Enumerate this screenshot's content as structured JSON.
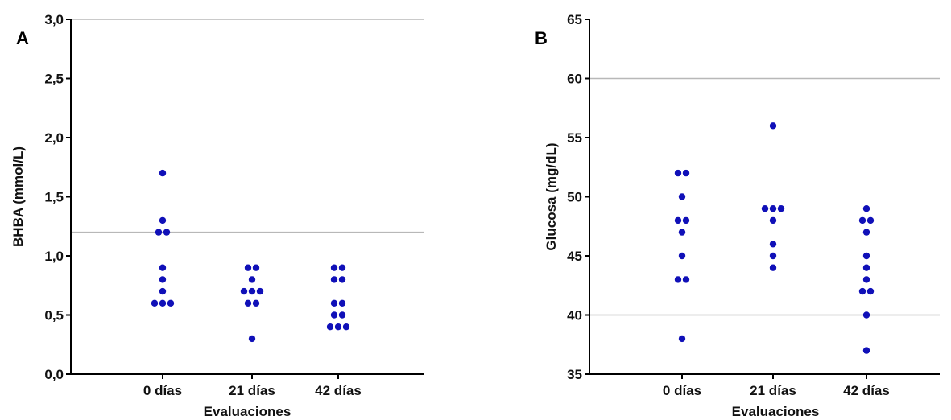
{
  "colors": {
    "point": "#1010b8",
    "axis": "#000000",
    "reference_line": "#b8b8b8"
  },
  "chart_data": [
    {
      "type": "scatter",
      "panel_label": "A",
      "categories": [
        "0 días",
        "21 días",
        "42 días"
      ],
      "xlabel": "Evaluaciones",
      "ylabel": "BHBA (mmol/L)",
      "ylim": [
        0,
        3
      ],
      "yticks": [
        "0,0",
        "0,5",
        "1,0",
        "1,5",
        "2,0",
        "2,5",
        "3,0"
      ],
      "ytick_values": [
        0,
        0.5,
        1,
        1.5,
        2,
        2.5,
        3
      ],
      "reference_lines": [
        1.2,
        3.0
      ],
      "points": [
        [
          0,
          1.7
        ],
        [
          0,
          1.3
        ],
        [
          0,
          1.2
        ],
        [
          0,
          1.2
        ],
        [
          0,
          0.9
        ],
        [
          0,
          0.8
        ],
        [
          0,
          0.7
        ],
        [
          0,
          0.6
        ],
        [
          0,
          0.6
        ],
        [
          0,
          0.6
        ],
        [
          1,
          0.9
        ],
        [
          1,
          0.9
        ],
        [
          1,
          0.8
        ],
        [
          1,
          0.7
        ],
        [
          1,
          0.7
        ],
        [
          1,
          0.7
        ],
        [
          1,
          0.6
        ],
        [
          1,
          0.6
        ],
        [
          1,
          0.3
        ],
        [
          2,
          0.9
        ],
        [
          2,
          0.9
        ],
        [
          2,
          0.8
        ],
        [
          2,
          0.8
        ],
        [
          2,
          0.6
        ],
        [
          2,
          0.6
        ],
        [
          2,
          0.5
        ],
        [
          2,
          0.5
        ],
        [
          2,
          0.4
        ],
        [
          2,
          0.4
        ],
        [
          2,
          0.4
        ]
      ]
    },
    {
      "type": "scatter",
      "panel_label": "B",
      "categories": [
        "0 días",
        "21 días",
        "42 días"
      ],
      "xlabel": "Evaluaciones",
      "ylabel": "Glucosa (mg/dL)",
      "ylim": [
        35,
        65
      ],
      "yticks": [
        "35",
        "40",
        "45",
        "50",
        "55",
        "60",
        "65"
      ],
      "ytick_values": [
        35,
        40,
        45,
        50,
        55,
        60,
        65
      ],
      "reference_lines": [
        40,
        60
      ],
      "points": [
        [
          0,
          52
        ],
        [
          0,
          52
        ],
        [
          0,
          50
        ],
        [
          0,
          48
        ],
        [
          0,
          48
        ],
        [
          0,
          47
        ],
        [
          0,
          45
        ],
        [
          0,
          43
        ],
        [
          0,
          43
        ],
        [
          0,
          38
        ],
        [
          1,
          56
        ],
        [
          1,
          49
        ],
        [
          1,
          49
        ],
        [
          1,
          49
        ],
        [
          1,
          48
        ],
        [
          1,
          46
        ],
        [
          1,
          45
        ],
        [
          1,
          44
        ],
        [
          2,
          49
        ],
        [
          2,
          48
        ],
        [
          2,
          48
        ],
        [
          2,
          47
        ],
        [
          2,
          45
        ],
        [
          2,
          44
        ],
        [
          2,
          43
        ],
        [
          2,
          42
        ],
        [
          2,
          42
        ],
        [
          2,
          40
        ],
        [
          2,
          37
        ]
      ]
    }
  ]
}
